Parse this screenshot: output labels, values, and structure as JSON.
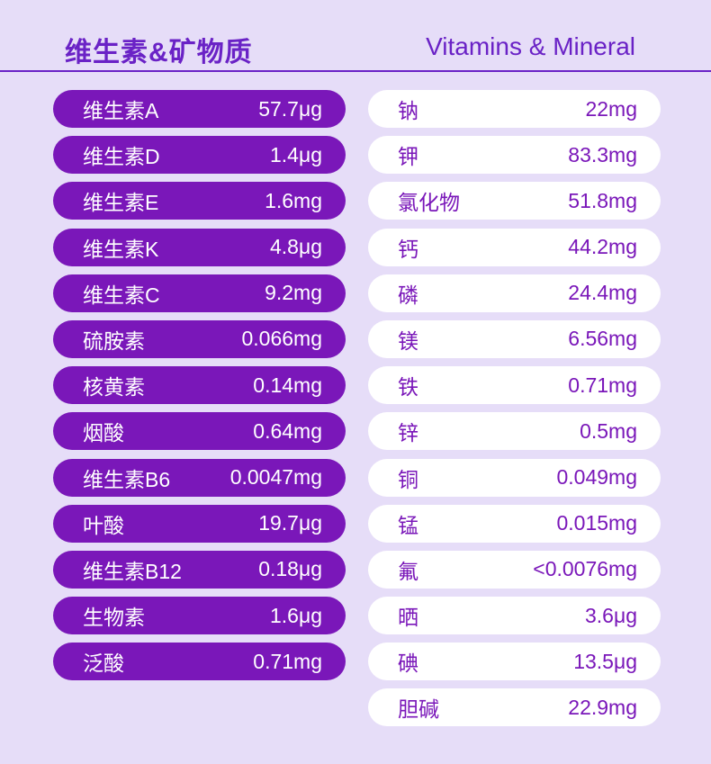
{
  "header": {
    "title_cn": "维生素&矿物质",
    "title_en": "Vitamins & Mineral"
  },
  "vitamins": [
    {
      "name": "维生素A",
      "value": "57.7μg"
    },
    {
      "name": "维生素D",
      "value": "1.4μg"
    },
    {
      "name": "维生素E",
      "value": "1.6mg"
    },
    {
      "name": "维生素K",
      "value": "4.8μg"
    },
    {
      "name": "维生素C",
      "value": "9.2mg"
    },
    {
      "name": "硫胺素",
      "value": "0.066mg"
    },
    {
      "name": "核黄素",
      "value": "0.14mg"
    },
    {
      "name": "烟酸",
      "value": "0.64mg"
    },
    {
      "name": "维生素B6",
      "value": "0.0047mg"
    },
    {
      "name": "叶酸",
      "value": "19.7μg"
    },
    {
      "name": "维生素B12",
      "value": "0.18μg"
    },
    {
      "name": "生物素",
      "value": "1.6μg"
    },
    {
      "name": "泛酸",
      "value": "0.71mg"
    }
  ],
  "minerals": [
    {
      "name": "钠",
      "value": "22mg"
    },
    {
      "name": "钾",
      "value": "83.3mg"
    },
    {
      "name": "氯化物",
      "value": "51.8mg"
    },
    {
      "name": "钙",
      "value": "44.2mg"
    },
    {
      "name": "磷",
      "value": "24.4mg"
    },
    {
      "name": "镁",
      "value": "6.56mg"
    },
    {
      "name": "铁",
      "value": "0.71mg"
    },
    {
      "name": "锌",
      "value": "0.5mg"
    },
    {
      "name": "铜",
      "value": "0.049mg"
    },
    {
      "name": "锰",
      "value": "0.015mg"
    },
    {
      "name": "氟",
      "value": "<0.0076mg"
    },
    {
      "name": "晒",
      "value": "3.6μg"
    },
    {
      "name": "碘",
      "value": "13.5μg"
    },
    {
      "name": "胆碱",
      "value": "22.9mg"
    }
  ],
  "colors": {
    "background": "#E6DDF8",
    "accent": "#6A22C6",
    "vitamin_pill": "#7A17B9",
    "mineral_pill": "#FFFFFF"
  }
}
